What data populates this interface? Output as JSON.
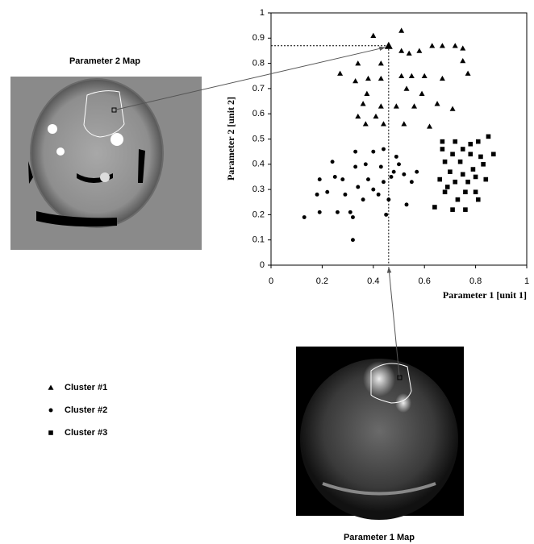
{
  "chart_data": {
    "type": "scatter",
    "xlabel": "Parameter 1 [unit 1]",
    "ylabel": "Parameter 2 [unit 2]",
    "xlim": [
      0,
      1
    ],
    "ylim": [
      0,
      1
    ],
    "xticks": [
      0,
      0.2,
      0.4,
      0.6,
      0.8,
      1
    ],
    "yticks": [
      0,
      0.1,
      0.2,
      0.3,
      0.4,
      0.5,
      0.6,
      0.7,
      0.8,
      0.9,
      1
    ],
    "highlighted_point": {
      "x": 0.46,
      "y": 0.87
    },
    "series": [
      {
        "name": "Cluster #1",
        "marker": "triangle",
        "color": "#000000",
        "x": [
          0.4,
          0.51,
          0.34,
          0.43,
          0.51,
          0.54,
          0.58,
          0.63,
          0.67,
          0.72,
          0.75,
          0.27,
          0.33,
          0.38,
          0.43,
          0.51,
          0.55,
          0.6,
          0.67,
          0.75,
          0.77,
          0.375,
          0.53,
          0.59,
          0.36,
          0.43,
          0.49,
          0.56,
          0.65,
          0.34,
          0.41,
          0.71,
          0.37,
          0.44,
          0.52,
          0.62
        ],
        "y": [
          0.91,
          0.93,
          0.8,
          0.8,
          0.85,
          0.84,
          0.85,
          0.87,
          0.87,
          0.87,
          0.86,
          0.76,
          0.73,
          0.74,
          0.74,
          0.75,
          0.75,
          0.75,
          0.74,
          0.81,
          0.76,
          0.68,
          0.7,
          0.68,
          0.64,
          0.63,
          0.63,
          0.63,
          0.64,
          0.59,
          0.59,
          0.62,
          0.56,
          0.56,
          0.56,
          0.55
        ]
      },
      {
        "name": "Cluster #2",
        "marker": "circle",
        "color": "#000000",
        "x": [
          0.13,
          0.19,
          0.18,
          0.19,
          0.24,
          0.22,
          0.25,
          0.26,
          0.28,
          0.29,
          0.31,
          0.32,
          0.32,
          0.33,
          0.33,
          0.34,
          0.36,
          0.37,
          0.38,
          0.4,
          0.4,
          0.42,
          0.43,
          0.44,
          0.44,
          0.45,
          0.46,
          0.47,
          0.48,
          0.49,
          0.5,
          0.52,
          0.55,
          0.57,
          0.53
        ],
        "y": [
          0.19,
          0.21,
          0.28,
          0.34,
          0.41,
          0.29,
          0.35,
          0.21,
          0.34,
          0.28,
          0.21,
          0.1,
          0.19,
          0.45,
          0.39,
          0.31,
          0.26,
          0.4,
          0.34,
          0.45,
          0.3,
          0.28,
          0.39,
          0.46,
          0.33,
          0.2,
          0.26,
          0.35,
          0.37,
          0.43,
          0.4,
          0.36,
          0.33,
          0.37,
          0.24
        ]
      },
      {
        "name": "Cluster #3",
        "marker": "square",
        "color": "#000000",
        "x": [
          0.64,
          0.66,
          0.67,
          0.67,
          0.68,
          0.68,
          0.69,
          0.7,
          0.71,
          0.71,
          0.72,
          0.72,
          0.73,
          0.74,
          0.75,
          0.75,
          0.76,
          0.76,
          0.77,
          0.78,
          0.78,
          0.79,
          0.8,
          0.8,
          0.81,
          0.81,
          0.82,
          0.83,
          0.84,
          0.85,
          0.87
        ],
        "y": [
          0.23,
          0.34,
          0.49,
          0.46,
          0.41,
          0.29,
          0.31,
          0.37,
          0.22,
          0.44,
          0.49,
          0.33,
          0.26,
          0.41,
          0.36,
          0.46,
          0.22,
          0.29,
          0.33,
          0.48,
          0.44,
          0.38,
          0.29,
          0.35,
          0.49,
          0.26,
          0.43,
          0.4,
          0.34,
          0.51,
          0.44
        ]
      }
    ]
  },
  "figures": [
    {
      "title": "Parameter 2 Map"
    },
    {
      "title": "Parameter 1 Map"
    }
  ]
}
